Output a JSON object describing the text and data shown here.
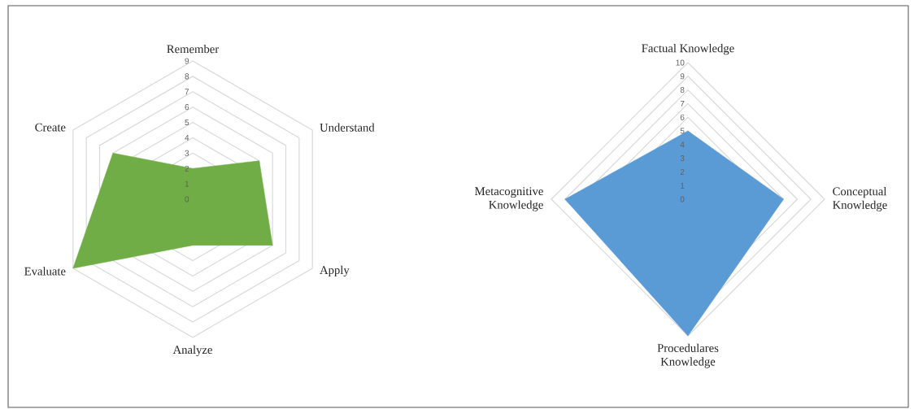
{
  "chart_data": [
    {
      "type": "radar",
      "categories": [
        "Remember",
        "Understand",
        "Apply",
        "Analyze",
        "Evaluate",
        "Create"
      ],
      "series": [
        {
          "color": "#70ad47",
          "values": [
            2,
            5,
            6,
            3,
            9,
            6
          ]
        }
      ],
      "ylim": [
        0,
        9
      ],
      "yticks": [
        0,
        1,
        2,
        3,
        4,
        5,
        6,
        7,
        8,
        9
      ],
      "grid": true
    },
    {
      "type": "radar",
      "categories": [
        "Factual Knowledge",
        "Conceptual Knowledge",
        "Procedulares Knowledge",
        "Metacognitive Knowledge"
      ],
      "series": [
        {
          "color": "#5b9bd5",
          "values": [
            5,
            7,
            10,
            9
          ]
        }
      ],
      "ylim": [
        0,
        10
      ],
      "yticks": [
        0,
        1,
        2,
        3,
        4,
        5,
        6,
        7,
        8,
        9,
        10
      ],
      "grid": true
    }
  ]
}
